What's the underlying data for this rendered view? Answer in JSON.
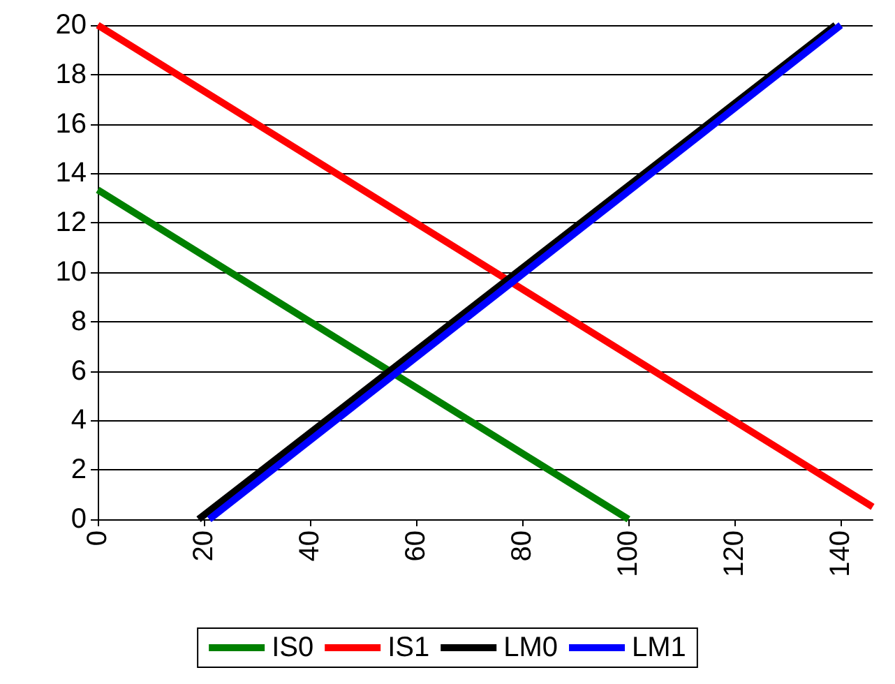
{
  "chart_data": {
    "type": "line",
    "xlim": [
      0,
      146
    ],
    "xticks": [
      0,
      20,
      40,
      60,
      80,
      100,
      120,
      140
    ],
    "ylim": [
      0,
      20
    ],
    "yticks": [
      0,
      2,
      4,
      6,
      8,
      10,
      12,
      14,
      16,
      18,
      20
    ],
    "grid": "y",
    "legend": "bottom",
    "marker": "none",
    "line_style": "solid",
    "series": [
      {
        "name": "IS0",
        "color": "#008000",
        "x": [
          0,
          100
        ],
        "values": [
          13.33,
          0
        ]
      },
      {
        "name": "IS1",
        "color": "#ff0000",
        "x": [
          0,
          146
        ],
        "values": [
          20,
          0.5
        ]
      },
      {
        "name": "LM0",
        "color": "#000000",
        "x": [
          19,
          139
        ],
        "values": [
          0,
          20
        ]
      },
      {
        "name": "LM1",
        "color": "#0000ff",
        "x": [
          21,
          140
        ],
        "values": [
          0,
          20
        ]
      }
    ]
  }
}
